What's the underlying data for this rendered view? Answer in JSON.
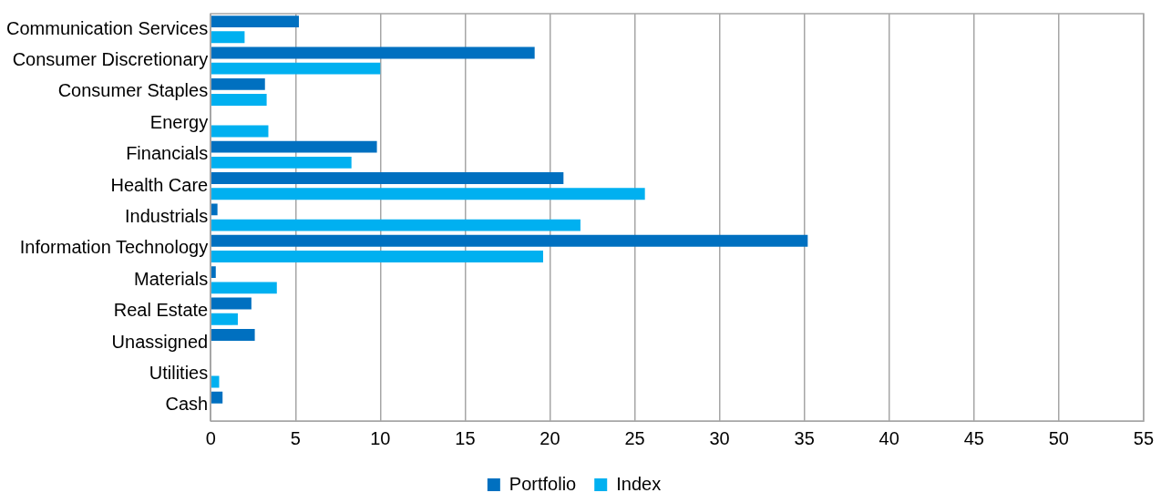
{
  "chart_data": {
    "type": "bar",
    "orientation": "horizontal",
    "categories": [
      "Communication Services",
      "Consumer Discretionary",
      "Consumer Staples",
      "Energy",
      "Financials",
      "Health Care",
      "Industrials",
      "Information Technology",
      "Materials",
      "Real Estate",
      "Unassigned",
      "Utilities",
      "Cash"
    ],
    "series": [
      {
        "name": "Portfolio",
        "color": "#0070c0",
        "values": [
          5.2,
          19.1,
          3.2,
          null,
          9.8,
          20.8,
          0.4,
          35.2,
          0.3,
          2.4,
          2.6,
          null,
          0.7
        ]
      },
      {
        "name": "Index",
        "color": "#00b0f0",
        "values": [
          2.0,
          10.0,
          3.3,
          3.4,
          8.3,
          25.6,
          21.8,
          19.6,
          3.9,
          1.6,
          null,
          0.5,
          null
        ]
      }
    ],
    "xlim": [
      0,
      55
    ],
    "xticks": [
      0,
      5,
      10,
      15,
      20,
      25,
      30,
      35,
      40,
      45,
      50,
      55
    ],
    "grid": "x",
    "legend": "bottom"
  }
}
